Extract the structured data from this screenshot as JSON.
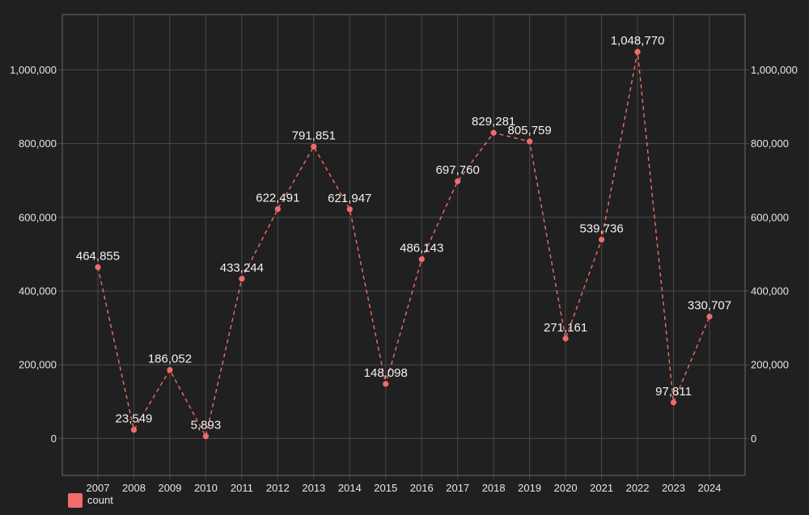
{
  "chart_data": {
    "type": "line",
    "title": "",
    "xlabel": "",
    "ylabel": "",
    "x": [
      "2007",
      "2008",
      "2009",
      "2010",
      "2011",
      "2012",
      "2013",
      "2014",
      "2015",
      "2016",
      "2017",
      "2018",
      "2019",
      "2020",
      "2021",
      "2022",
      "2023",
      "2024"
    ],
    "series": [
      {
        "name": "count",
        "color": "#f26b6b",
        "values": [
          464855,
          23549,
          186052,
          5893,
          433244,
          622491,
          791851,
          621947,
          148098,
          486143,
          697760,
          829281,
          805759,
          271161,
          539736,
          1048770,
          97811,
          330707
        ],
        "labels": [
          "464,855",
          "23,549",
          "186,052",
          "5,893",
          "433,244",
          "622,491",
          "791,851",
          "621,947",
          "148,098",
          "486,143",
          "697,760",
          "829,281",
          "805,759",
          "271,161",
          "539,736",
          "1,048,770",
          "97,811",
          "330,707"
        ]
      }
    ],
    "ylim": [
      -100000,
      1150000
    ],
    "yticks": [
      0,
      200000,
      400000,
      600000,
      800000,
      1000000
    ],
    "ytick_labels": [
      "0",
      "200,000",
      "400,000",
      "600,000",
      "800,000",
      "1,000,000"
    ],
    "grid": true,
    "legend_position": "bottom-left",
    "background": "#202020",
    "line_style": "dashed",
    "dual_y_axis": true
  }
}
